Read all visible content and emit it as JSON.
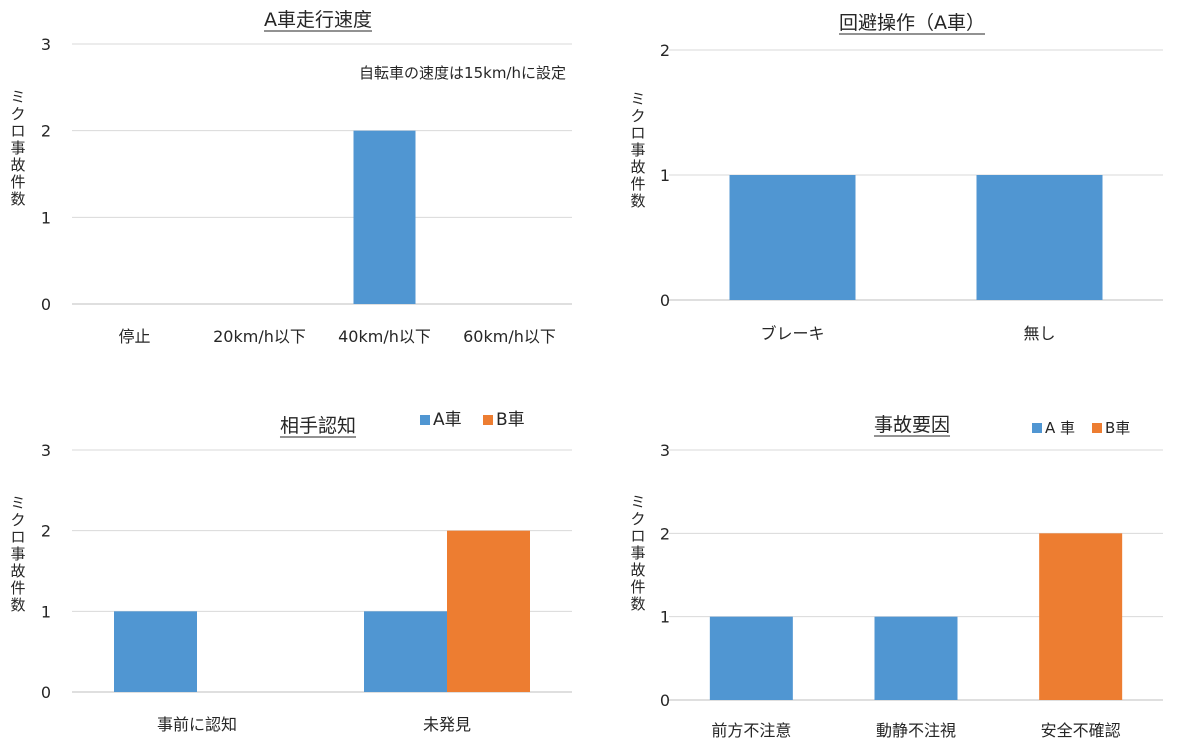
{
  "colors": {
    "a": "#5096D2",
    "b": "#ED7D31",
    "grid": "#D9D9D9",
    "axis": "#BFBFBF"
  },
  "chart_data": [
    {
      "type": "bar",
      "title": "A車走行速度",
      "ylabel": "ミクロ事故件数",
      "annotation": "自転車の速度は15km/hに設定",
      "categories": [
        "停止",
        "20km/h以下",
        "40km/h以下",
        "60km/h以下"
      ],
      "series": [
        {
          "values": [
            0,
            0,
            2,
            0
          ],
          "color": "#5096D2"
        }
      ],
      "yticks": [
        "0",
        "1",
        "2",
        "3"
      ],
      "ylim": [
        0,
        3
      ],
      "grid": true
    },
    {
      "type": "bar",
      "title": "回避操作（A車）",
      "ylabel": "ミクロ事故件数",
      "categories": [
        "ブレーキ",
        "無し"
      ],
      "series": [
        {
          "values": [
            1,
            1
          ],
          "color": "#5096D2"
        }
      ],
      "yticks": [
        "0",
        "1",
        "2"
      ],
      "ylim": [
        0,
        2
      ],
      "grid": true
    },
    {
      "type": "bar",
      "title": "相手認知",
      "ylabel": "ミクロ事故件数",
      "categories": [
        "事前に認知",
        "未発見"
      ],
      "series": [
        {
          "name": "A車",
          "values": [
            1,
            1
          ],
          "color": "#5096D2"
        },
        {
          "name": "B車",
          "values": [
            0,
            2
          ],
          "color": "#ED7D31"
        }
      ],
      "legend": "top-right",
      "yticks": [
        "0",
        "1",
        "2",
        "3"
      ],
      "ylim": [
        0,
        3
      ],
      "grid": true
    },
    {
      "type": "bar",
      "title": "事故要因",
      "ylabel": "ミクロ事故件数",
      "categories": [
        "前方不注意",
        "動静不注視",
        "安全不確認"
      ],
      "series": [
        {
          "name": "A車",
          "legend_label": "A 車",
          "values": [
            1,
            1,
            0
          ],
          "color": "#5096D2"
        },
        {
          "name": "B車",
          "legend_label": "B車",
          "values": [
            0,
            0,
            2
          ],
          "color": "#ED7D31"
        }
      ],
      "stacked_slots": true,
      "legend": "top-right",
      "yticks": [
        "0",
        "1",
        "2",
        "3"
      ],
      "ylim": [
        0,
        3
      ],
      "grid": true
    }
  ]
}
